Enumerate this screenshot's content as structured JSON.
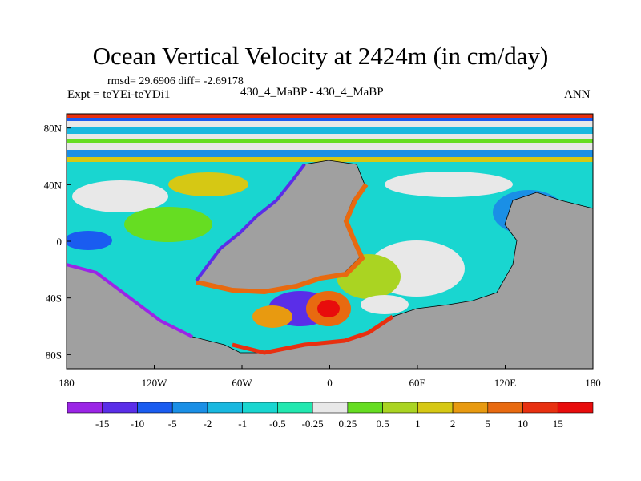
{
  "title": "Ocean Vertical Velocity at 2424m (in cm/day)",
  "stats": "rmsd= 29.6906 diff= -2.69178",
  "experiment": "Expt = teYEi-teYDi1",
  "case_label": "430_4_MaBP - 430_4_MaBP",
  "season": "ANN",
  "lat_ticks": [
    {
      "label": "80N",
      "value": 80
    },
    {
      "label": "40N",
      "value": 40
    },
    {
      "label": "0",
      "value": 0
    },
    {
      "label": "40S",
      "value": -40
    },
    {
      "label": "80S",
      "value": -80
    }
  ],
  "lon_ticks": [
    {
      "label": "180",
      "value": -180
    },
    {
      "label": "120W",
      "value": -120
    },
    {
      "label": "60W",
      "value": -60
    },
    {
      "label": "0",
      "value": 0
    },
    {
      "label": "60E",
      "value": 60
    },
    {
      "label": "120E",
      "value": 120
    },
    {
      "label": "180",
      "value": 180
    }
  ],
  "colorbar": {
    "labels": [
      "-15",
      "-10",
      "-5",
      "-2",
      "-1",
      "-0.5",
      "-0.25",
      "0.25",
      "0.5",
      "1",
      "2",
      "5",
      "10",
      "15"
    ],
    "colors": [
      "#9b25e6",
      "#5a2ee8",
      "#1a5cf0",
      "#1a8fe6",
      "#19b8e0",
      "#19d6d0",
      "#22e8b0",
      "#e8e8e8",
      "#66dd22",
      "#aad422",
      "#d6c814",
      "#e89a10",
      "#e86a10",
      "#e83010",
      "#e80c0c"
    ]
  },
  "land_color": "#a0a0a0"
}
